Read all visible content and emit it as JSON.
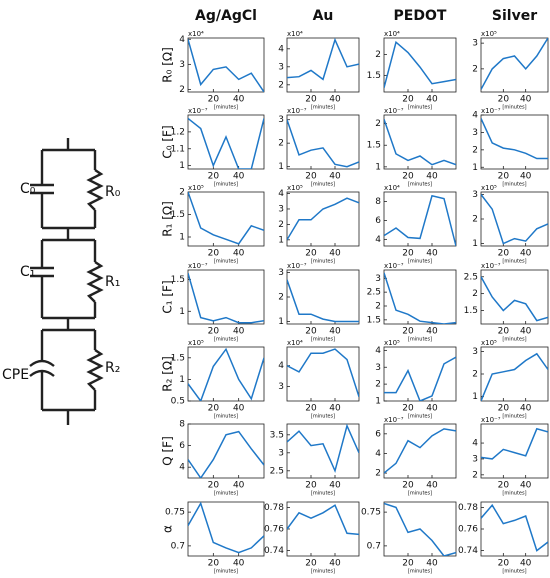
{
  "column_headers": [
    "Ag/AgCl",
    "Au",
    "PEDOT",
    "Silver"
  ],
  "row_labels": [
    "R₀  [Ω]",
    "C₀  [F]",
    "R₁  [Ω]",
    "C₁  [F]",
    "R₂  [Ω]",
    "Q  [F]",
    "α"
  ],
  "circuit": {
    "labels": [
      "C₀",
      "R₀",
      "C₁",
      "R₁",
      "CPE",
      "R₂"
    ]
  },
  "chart_data": [
    {
      "type": "line",
      "exponent": "x10⁴",
      "x": [
        0,
        10,
        20,
        30,
        40,
        50,
        60
      ],
      "xlim": [
        0,
        60
      ],
      "xticks": [
        20,
        40
      ],
      "xlabel": "[minutes]",
      "ylim": [
        1.9,
        4.05
      ],
      "yticks": [
        2,
        3,
        4
      ],
      "color": "#1f78c8",
      "values": [
        4,
        2.2,
        2.8,
        2.9,
        2.4,
        2.65,
        1.9
      ]
    },
    {
      "type": "line",
      "exponent": "x10⁴",
      "x": [
        0,
        10,
        20,
        30,
        40,
        50,
        60
      ],
      "xlim": [
        0,
        60
      ],
      "xticks": [
        20,
        40
      ],
      "xlabel": "[minutes]",
      "ylim": [
        1.6,
        4.6
      ],
      "yticks": [
        2,
        3,
        4
      ],
      "color": "#1f78c8",
      "values": [
        2.4,
        2.45,
        2.8,
        2.3,
        4.5,
        3.0,
        3.15
      ]
    },
    {
      "type": "line",
      "exponent": "x10⁴",
      "x": [
        0,
        10,
        20,
        30,
        40,
        50,
        60
      ],
      "xlim": [
        0,
        60
      ],
      "xticks": [
        20,
        40
      ],
      "xlabel": "[minutes]",
      "ylim": [
        1.1,
        2.4
      ],
      "yticks": [
        1.5,
        2
      ],
      "color": "#1f78c8",
      "values": [
        1.2,
        2.3,
        2.05,
        1.7,
        1.3,
        1.35,
        1.4
      ]
    },
    {
      "type": "line",
      "exponent": "x10⁵",
      "x": [
        0,
        10,
        20,
        30,
        40,
        50,
        60
      ],
      "xlim": [
        0,
        60
      ],
      "xticks": [
        20,
        40
      ],
      "xlabel": "[minutes]",
      "ylim": [
        1.1,
        3.2
      ],
      "yticks": [
        2,
        3
      ],
      "color": "#1f78c8",
      "values": [
        1.2,
        2.0,
        2.4,
        2.5,
        2.0,
        2.5,
        3.2
      ]
    },
    {
      "type": "line",
      "exponent": "x10⁻⁷",
      "x": [
        0,
        10,
        20,
        30,
        40,
        50,
        60
      ],
      "xlim": [
        0,
        60
      ],
      "xticks": [
        20,
        40
      ],
      "xlabel": "[minutes]",
      "ylim": [
        0.98,
        1.3
      ],
      "yticks": [
        1,
        1.1,
        1.2
      ],
      "color": "#1f78c8",
      "values": [
        1.28,
        1.22,
        1.0,
        1.17,
        0.98,
        0.98,
        1.28
      ]
    },
    {
      "type": "line",
      "exponent": "x10⁻⁷",
      "x": [
        0,
        10,
        20,
        30,
        40,
        50,
        60
      ],
      "xlim": [
        0,
        60
      ],
      "xticks": [
        20,
        40
      ],
      "xlabel": "[minutes]",
      "ylim": [
        0.9,
        3.2
      ],
      "yticks": [
        1,
        2,
        3
      ],
      "color": "#1f78c8",
      "values": [
        3.0,
        1.5,
        1.7,
        1.8,
        1.1,
        1.0,
        1.2
      ]
    },
    {
      "type": "line",
      "exponent": "x10⁻⁷",
      "x": [
        0,
        10,
        20,
        30,
        40,
        50,
        60
      ],
      "xlim": [
        0,
        60
      ],
      "xticks": [
        20,
        40
      ],
      "xlabel": "[minutes]",
      "ylim": [
        0.95,
        2.2
      ],
      "yticks": [
        1,
        1.5,
        2
      ],
      "color": "#1f78c8",
      "values": [
        2.1,
        1.3,
        1.15,
        1.25,
        1.05,
        1.15,
        1.05
      ]
    },
    {
      "type": "line",
      "exponent": "x10⁻⁷",
      "x": [
        0,
        10,
        20,
        30,
        40,
        50,
        60
      ],
      "xlim": [
        0,
        60
      ],
      "xticks": [
        20,
        40
      ],
      "xlabel": "[minutes]",
      "ylim": [
        0.9,
        4.0
      ],
      "yticks": [
        1,
        2,
        3,
        4
      ],
      "color": "#1f78c8",
      "values": [
        3.8,
        2.4,
        2.1,
        2.0,
        1.8,
        1.5,
        1.5
      ]
    },
    {
      "type": "line",
      "exponent": "x10⁵",
      "x": [
        0,
        10,
        20,
        30,
        40,
        50,
        60
      ],
      "xlim": [
        0,
        60
      ],
      "xticks": [
        20,
        40
      ],
      "xlabel": "[minutes]",
      "ylim": [
        0.8,
        2.0
      ],
      "yticks": [
        1,
        1.5,
        2
      ],
      "color": "#1f78c8",
      "values": [
        2.0,
        1.2,
        1.05,
        0.95,
        0.85,
        1.25,
        1.15
      ]
    },
    {
      "type": "line",
      "exponent": "x10⁵",
      "x": [
        0,
        10,
        20,
        30,
        40,
        50,
        60
      ],
      "xlim": [
        0,
        60
      ],
      "xticks": [
        20,
        40
      ],
      "xlabel": "[minutes]",
      "ylim": [
        0.6,
        4.1
      ],
      "yticks": [
        1,
        2,
        3,
        4
      ],
      "color": "#1f78c8",
      "values": [
        1.0,
        2.3,
        2.3,
        3.0,
        3.3,
        3.7,
        3.4
      ]
    },
    {
      "type": "line",
      "exponent": "x10⁴",
      "x": [
        0,
        10,
        20,
        30,
        40,
        50,
        60
      ],
      "xlim": [
        0,
        60
      ],
      "xticks": [
        20,
        40
      ],
      "xlabel": "[minutes]",
      "ylim": [
        3.3,
        9
      ],
      "yticks": [
        4,
        6,
        8
      ],
      "color": "#1f78c8",
      "values": [
        4.4,
        5.2,
        4.2,
        4.1,
        8.6,
        8.3,
        3.3
      ]
    },
    {
      "type": "line",
      "exponent": "x10⁵",
      "x": [
        0,
        10,
        20,
        30,
        40,
        50,
        60
      ],
      "xlim": [
        0,
        60
      ],
      "xticks": [
        20,
        40
      ],
      "xlabel": "[minutes]",
      "ylim": [
        0.9,
        3.1
      ],
      "yticks": [
        1,
        2,
        3
      ],
      "color": "#1f78c8",
      "values": [
        3.0,
        2.4,
        1.0,
        1.2,
        1.1,
        1.6,
        1.8
      ]
    },
    {
      "type": "line",
      "exponent": "x10⁻⁷",
      "x": [
        0,
        10,
        20,
        30,
        40,
        50,
        60
      ],
      "xlim": [
        0,
        60
      ],
      "xticks": [
        20,
        40
      ],
      "xlabel": "[minutes]",
      "ylim": [
        0.8,
        1.65
      ],
      "yticks": [
        1,
        1.5
      ],
      "color": "#1f78c8",
      "values": [
        1.6,
        0.9,
        0.85,
        0.9,
        0.82,
        0.82,
        0.85
      ]
    },
    {
      "type": "line",
      "exponent": "x10⁻⁷",
      "x": [
        0,
        10,
        20,
        30,
        40,
        50,
        60
      ],
      "xlim": [
        0,
        60
      ],
      "xticks": [
        20,
        40
      ],
      "xlabel": "[minutes]",
      "ylim": [
        0.9,
        3.1
      ],
      "yticks": [
        1,
        2,
        3
      ],
      "color": "#1f78c8",
      "values": [
        2.7,
        1.3,
        1.3,
        1.1,
        1.0,
        1.0,
        1.0
      ]
    },
    {
      "type": "line",
      "exponent": "x10⁻⁷",
      "x": [
        0,
        10,
        20,
        30,
        40,
        50,
        60
      ],
      "xlim": [
        0,
        60
      ],
      "xticks": [
        20,
        40
      ],
      "xlabel": "[minutes]",
      "ylim": [
        1.35,
        3.3
      ],
      "yticks": [
        1.5,
        2,
        2.5,
        3
      ],
      "color": "#1f78c8",
      "values": [
        3.2,
        1.85,
        1.7,
        1.45,
        1.4,
        1.35,
        1.4
      ]
    },
    {
      "type": "line",
      "exponent": "x10⁻⁷",
      "x": [
        0,
        10,
        20,
        30,
        40,
        50,
        60
      ],
      "xlim": [
        0,
        60
      ],
      "xticks": [
        20,
        40
      ],
      "xlabel": "[minutes]",
      "ylim": [
        1.1,
        2.7
      ],
      "yticks": [
        1.5,
        2,
        2.5
      ],
      "color": "#1f78c8",
      "values": [
        2.5,
        1.9,
        1.5,
        1.8,
        1.7,
        1.2,
        1.3
      ]
    },
    {
      "type": "line",
      "exponent": "x10⁵",
      "x": [
        0,
        10,
        20,
        30,
        40,
        50,
        60
      ],
      "xlim": [
        0,
        60
      ],
      "xticks": [
        20,
        40
      ],
      "xlabel": "[minutes]",
      "ylim": [
        0.5,
        1.75
      ],
      "yticks": [
        0.5,
        1,
        1.5
      ],
      "color": "#1f78c8",
      "values": [
        0.9,
        0.5,
        1.3,
        1.7,
        1.0,
        0.55,
        1.5
      ]
    },
    {
      "type": "line",
      "exponent": "x10⁴",
      "x": [
        0,
        10,
        20,
        30,
        40,
        50,
        60
      ],
      "xlim": [
        0,
        60
      ],
      "xticks": [
        20,
        40
      ],
      "xlabel": "[minutes]",
      "ylim": [
        2.3,
        4.9
      ],
      "yticks": [
        3,
        4
      ],
      "color": "#1f78c8",
      "values": [
        4.0,
        3.7,
        4.6,
        4.6,
        4.8,
        4.3,
        2.5
      ]
    },
    {
      "type": "line",
      "exponent": "x10⁵",
      "x": [
        0,
        10,
        20,
        30,
        40,
        50,
        60
      ],
      "xlim": [
        0,
        60
      ],
      "xticks": [
        20,
        40
      ],
      "xlabel": "[minutes]",
      "ylim": [
        1,
        4.2
      ],
      "yticks": [
        1,
        2,
        3,
        4
      ],
      "color": "#1f78c8",
      "values": [
        1.5,
        1.5,
        2.8,
        1.0,
        1.3,
        3.2,
        3.6
      ]
    },
    {
      "type": "line",
      "exponent": "x10⁵",
      "x": [
        0,
        10,
        20,
        30,
        40,
        50,
        60
      ],
      "xlim": [
        0,
        60
      ],
      "xticks": [
        20,
        40
      ],
      "xlabel": "[minutes]",
      "ylim": [
        0.8,
        3.2
      ],
      "yticks": [
        1,
        2,
        3
      ],
      "color": "#1f78c8",
      "values": [
        0.8,
        2.0,
        2.1,
        2.2,
        2.6,
        2.9,
        2.2
      ]
    },
    {
      "type": "line",
      "x": [
        0,
        10,
        20,
        30,
        40,
        50,
        60
      ],
      "xlim": [
        0,
        60
      ],
      "xticks": [
        20,
        40
      ],
      "xlabel": "[minutes]",
      "ylim": [
        3,
        8
      ],
      "yticks": [
        4,
        6,
        8
      ],
      "color": "#1f78c8",
      "values": [
        4.7,
        3.0,
        4.7,
        7.0,
        7.3,
        5.7,
        4.2
      ]
    },
    {
      "type": "line",
      "x": [
        0,
        10,
        20,
        30,
        40,
        50,
        60
      ],
      "xlim": [
        0,
        60
      ],
      "xticks": [
        20,
        40
      ],
      "xlabel": "[minutes]",
      "ylim": [
        2.3,
        3.8
      ],
      "yticks": [
        2.5,
        3,
        3.5
      ],
      "color": "#1f78c8",
      "values": [
        3.3,
        3.6,
        3.2,
        3.25,
        2.5,
        3.75,
        3.0
      ]
    },
    {
      "type": "line",
      "exponent": "x10⁻⁷",
      "x": [
        0,
        10,
        20,
        30,
        40,
        50,
        60
      ],
      "xlim": [
        0,
        60
      ],
      "xticks": [
        20,
        40
      ],
      "xlabel": "[minutes]",
      "ylim": [
        1.5,
        7
      ],
      "yticks": [
        2,
        4,
        6
      ],
      "color": "#1f78c8",
      "values": [
        2.0,
        3.0,
        5.3,
        4.6,
        5.8,
        6.5,
        6.3
      ]
    },
    {
      "type": "line",
      "exponent": "x10⁻⁷",
      "x": [
        0,
        10,
        20,
        30,
        40,
        50,
        60
      ],
      "xlim": [
        0,
        60
      ],
      "xticks": [
        20,
        40
      ],
      "xlabel": "[minutes]",
      "ylim": [
        1.8,
        5.2
      ],
      "yticks": [
        2,
        3,
        4
      ],
      "color": "#1f78c8",
      "values": [
        3.1,
        3.0,
        3.6,
        3.4,
        3.2,
        4.9,
        4.7
      ]
    },
    {
      "type": "line",
      "x": [
        0,
        10,
        20,
        30,
        40,
        50,
        60
      ],
      "xlim": [
        0,
        60
      ],
      "xticks": [
        20,
        40
      ],
      "xlabel": "[minutes]",
      "ylim": [
        0.685,
        0.765
      ],
      "yticks": [
        0.7,
        0.75
      ],
      "color": "#1f78c8",
      "values": [
        0.73,
        0.763,
        0.705,
        0.697,
        0.69,
        0.697,
        0.715
      ]
    },
    {
      "type": "line",
      "x": [
        0,
        10,
        20,
        30,
        40,
        50,
        60
      ],
      "xlim": [
        0,
        60
      ],
      "xticks": [
        20,
        40
      ],
      "xlabel": "[minutes]",
      "ylim": [
        0.735,
        0.785
      ],
      "yticks": [
        0.74,
        0.76,
        0.78
      ],
      "color": "#1f78c8",
      "values": [
        0.76,
        0.775,
        0.77,
        0.775,
        0.782,
        0.756,
        0.755
      ]
    },
    {
      "type": "line",
      "x": [
        0,
        10,
        20,
        30,
        40,
        50,
        60
      ],
      "xlim": [
        0,
        60
      ],
      "xticks": [
        20,
        40
      ],
      "xlabel": "[minutes]",
      "ylim": [
        0.685,
        0.765
      ],
      "yticks": [
        0.7,
        0.75
      ],
      "color": "#1f78c8",
      "values": [
        0.763,
        0.757,
        0.72,
        0.725,
        0.708,
        0.685,
        0.69
      ]
    },
    {
      "type": "line",
      "x": [
        0,
        10,
        20,
        30,
        40,
        50,
        60
      ],
      "xlim": [
        0,
        60
      ],
      "xticks": [
        20,
        40
      ],
      "xlabel": "[minutes]",
      "ylim": [
        0.735,
        0.785
      ],
      "yticks": [
        0.74,
        0.76,
        0.78
      ],
      "color": "#1f78c8",
      "values": [
        0.77,
        0.782,
        0.765,
        0.768,
        0.772,
        0.74,
        0.748
      ]
    }
  ]
}
